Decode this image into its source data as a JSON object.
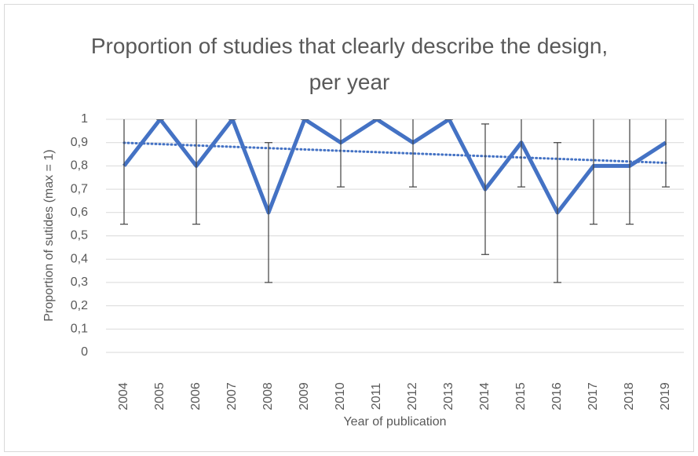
{
  "chart_data": {
    "type": "line",
    "title": "Proportion of studies that clearly describe the design, per year",
    "x_label": "Year of publication",
    "y_label": "Proportion of sutides (max = 1)",
    "categories": [
      "2004",
      "2005",
      "2006",
      "2007",
      "2008",
      "2009",
      "2010",
      "2011",
      "2012",
      "2013",
      "2014",
      "2015",
      "2016",
      "2017",
      "2018",
      "2019"
    ],
    "values": [
      0.8,
      1,
      0.8,
      1,
      0.6,
      1,
      0.9,
      1,
      0.9,
      1,
      0.7,
      0.9,
      0.6,
      0.8,
      0.8,
      0.9
    ],
    "errors": [
      0.25,
      0,
      0.25,
      0,
      0.3,
      0,
      0.19,
      0,
      0.19,
      0,
      0.28,
      0.19,
      0.3,
      0.25,
      0.25,
      0.19
    ],
    "color": "#4472c4",
    "error_color": "#404040",
    "trendline": "linear",
    "ylim": [
      0,
      1
    ],
    "yticks": [
      0,
      {
        "value": 0.1,
        "label": "0,1"
      },
      {
        "value": 0.2,
        "label": "0,2"
      },
      {
        "value": 0.3,
        "label": "0,3"
      },
      {
        "value": 0.4,
        "label": "0,4"
      },
      {
        "value": 0.5,
        "label": "0,5"
      },
      {
        "value": 0.6,
        "label": "0,6"
      },
      {
        "value": 0.7,
        "label": "0,7"
      },
      {
        "value": 0.8,
        "label": "0,8"
      },
      {
        "value": 0.9,
        "label": "0,9"
      },
      1
    ],
    "grid": true
  }
}
